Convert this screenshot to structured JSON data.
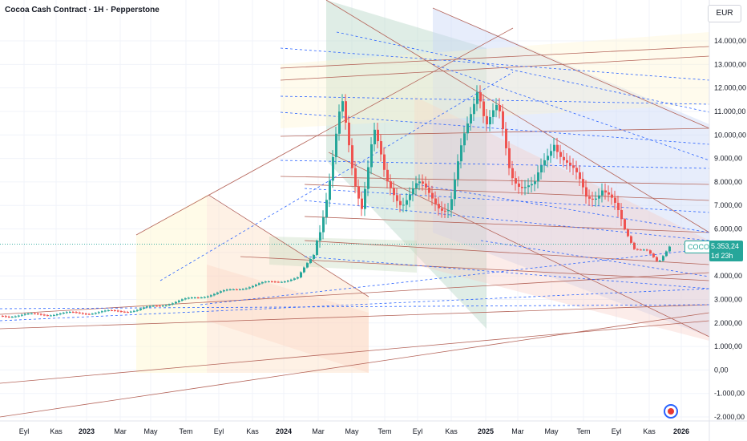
{
  "header": {
    "title": "Cocoa Cash Contract · 1H · Pepperstone",
    "currency": "EUR"
  },
  "price_tag": {
    "symbol": "COCOA",
    "price": "5.353,24",
    "countdown": "1d 23h"
  },
  "colors": {
    "up": "#26a69a",
    "down": "#ef5350",
    "ohlc_fallback": "#787b86"
  },
  "chart_data": {
    "type": "candlestick",
    "yticks": [
      "14.000,00",
      "13.000,00",
      "12.000,00",
      "11.000,00",
      "10.000,00",
      "9.000,00",
      "8.000,00",
      "7.000,00",
      "6.000,00",
      "5.000,00",
      "4.000,00",
      "3.000,00",
      "2.000,00",
      "1.000,00",
      "0,00",
      "-1.000,00",
      "-2.000,00"
    ],
    "ytick_values": [
      14000,
      13000,
      12000,
      11000,
      10000,
      9000,
      8000,
      7000,
      6000,
      5000,
      4000,
      3000,
      2000,
      1000,
      0,
      -1000,
      -2000
    ],
    "ylim": [
      -2200,
      15400
    ],
    "xticks": [
      "Eyl",
      "Kas",
      "2023",
      "Mar",
      "May",
      "Tem",
      "Eyl",
      "Kas",
      "2024",
      "Mar",
      "May",
      "Tem",
      "Eyl",
      "Kas",
      "2025",
      "Mar",
      "May",
      "Tem",
      "Eyl",
      "Kas",
      "2026"
    ],
    "xtick_bold": [
      "2023",
      "2024",
      "2025",
      "2026"
    ],
    "x_start": "2022-08",
    "x_end": "2026-01",
    "last_price": 5353.24
  }
}
